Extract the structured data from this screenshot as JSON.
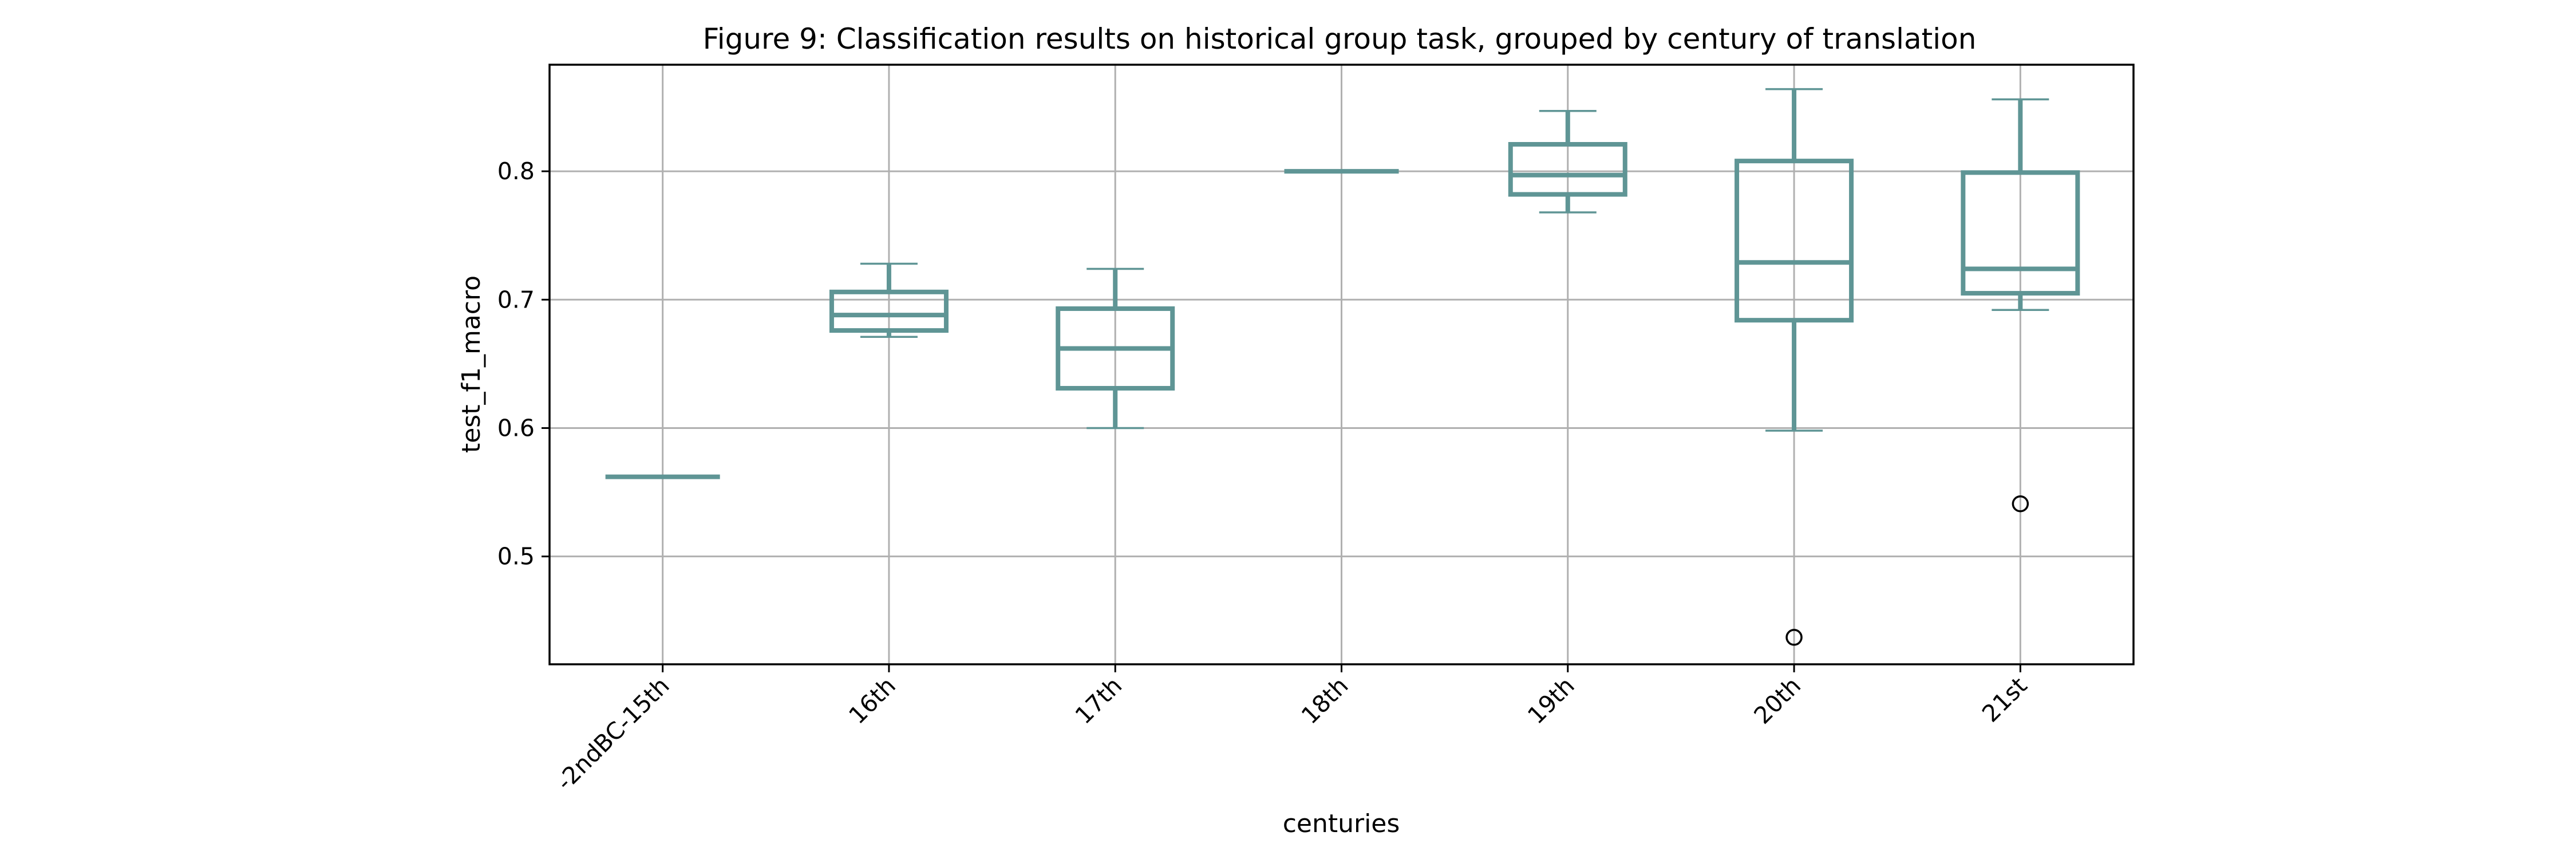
{
  "chart_data": {
    "type": "box",
    "title": "Figure 9: Classification results on historical group task, grouped by century of translation",
    "xlabel": "centuries",
    "ylabel": "test_f1_macro",
    "ylim": [
      0.416,
      0.883
    ],
    "yticks": [
      0.5,
      0.6,
      0.7,
      0.8
    ],
    "ytick_labels": [
      "0.5",
      "0.6",
      "0.7",
      "0.8"
    ],
    "grid": true,
    "color": "#5f9595",
    "categories": [
      "-2ndBC-15th",
      "16th",
      "17th",
      "18th",
      "19th",
      "20th",
      "21st"
    ],
    "boxes": [
      {
        "category": "-2ndBC-15th",
        "whislo": 0.562,
        "q1": 0.562,
        "med": 0.562,
        "q3": 0.562,
        "whishi": 0.562,
        "fliers": []
      },
      {
        "category": "16th",
        "whislo": 0.671,
        "q1": 0.676,
        "med": 0.688,
        "q3": 0.706,
        "whishi": 0.728,
        "fliers": []
      },
      {
        "category": "17th",
        "whislo": 0.6,
        "q1": 0.631,
        "med": 0.662,
        "q3": 0.693,
        "whishi": 0.724,
        "fliers": []
      },
      {
        "category": "18th",
        "whislo": 0.8,
        "q1": 0.8,
        "med": 0.8,
        "q3": 0.8,
        "whishi": 0.8,
        "fliers": []
      },
      {
        "category": "19th",
        "whislo": 0.768,
        "q1": 0.782,
        "med": 0.797,
        "q3": 0.821,
        "whishi": 0.847,
        "fliers": []
      },
      {
        "category": "20th",
        "whislo": 0.598,
        "q1": 0.684,
        "med": 0.729,
        "q3": 0.808,
        "whishi": 0.864,
        "fliers": [
          0.437
        ]
      },
      {
        "category": "21st",
        "whislo": 0.692,
        "q1": 0.705,
        "med": 0.724,
        "q3": 0.799,
        "whishi": 0.856,
        "fliers": [
          0.541
        ]
      }
    ]
  }
}
